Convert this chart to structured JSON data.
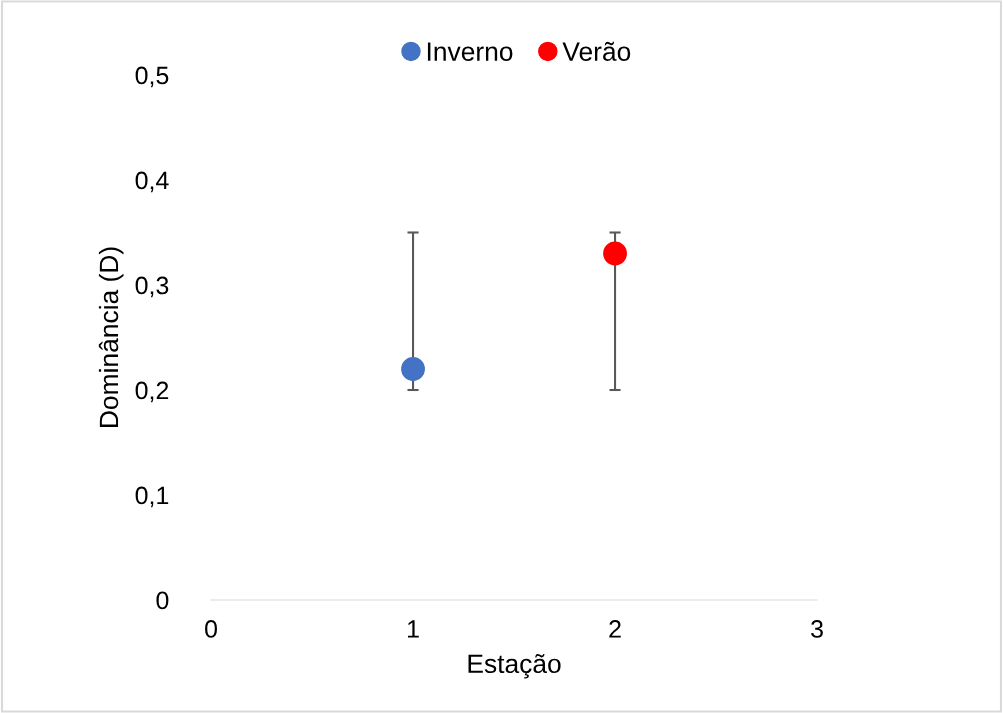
{
  "chart_data": {
    "type": "scatter",
    "xlabel": "Estação",
    "ylabel": "Dominância (D)",
    "xlim": [
      0,
      3
    ],
    "xticks": [
      0,
      1,
      2,
      3
    ],
    "ylim": [
      0,
      0.5
    ],
    "yticks": [
      {
        "value": 0,
        "label": "0"
      },
      {
        "value": 0.1,
        "label": "0,1"
      },
      {
        "value": 0.2,
        "label": "0,2"
      },
      {
        "value": 0.3,
        "label": "0,3"
      },
      {
        "value": 0.4,
        "label": "0,4"
      },
      {
        "value": 0.5,
        "label": "0,5"
      }
    ],
    "series": [
      {
        "name": "Inverno",
        "color": "#4472c4",
        "x": [
          1
        ],
        "values": [
          0.22
        ],
        "errors": [
          [
            0.2,
            0.35
          ]
        ]
      },
      {
        "name": "Verão",
        "color": "#ff0000",
        "x": [
          2
        ],
        "values": [
          0.33
        ],
        "errors": [
          [
            0.2,
            0.35
          ]
        ]
      }
    ],
    "marker": "circle",
    "grid": false,
    "legend": "top"
  }
}
